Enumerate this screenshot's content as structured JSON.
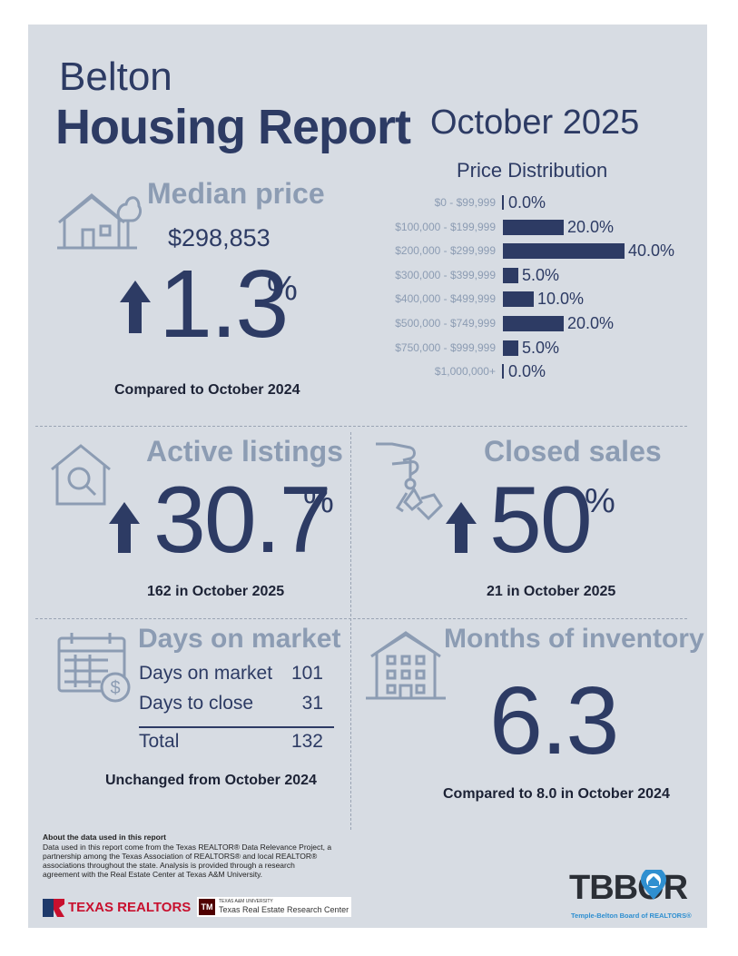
{
  "header": {
    "city": "Belton",
    "title": "Housing Report",
    "period": "October 2025"
  },
  "median_price": {
    "title": "Median price",
    "price": "$298,853",
    "change": "1.3",
    "unit": "%",
    "direction": "up",
    "comparison": "Compared to October 2024",
    "icon": "house-tree-icon"
  },
  "price_distribution": {
    "title": "Price Distribution",
    "rows": [
      {
        "range": "$0 - $99,999",
        "label": "0.0%",
        "value": 0.0
      },
      {
        "range": "$100,000 - $199,999",
        "label": "20.0%",
        "value": 20.0
      },
      {
        "range": "$200,000 - $299,999",
        "label": "40.0%",
        "value": 40.0
      },
      {
        "range": "$300,000 - $399,999",
        "label": "5.0%",
        "value": 5.0
      },
      {
        "range": "$400,000 - $499,999",
        "label": "10.0%",
        "value": 10.0
      },
      {
        "range": "$500,000 - $749,999",
        "label": "20.0%",
        "value": 20.0
      },
      {
        "range": "$750,000 - $999,999",
        "label": "5.0%",
        "value": 5.0
      },
      {
        "range": "$1,000,000+",
        "label": "0.0%",
        "value": 0.0
      }
    ]
  },
  "chart_data": {
    "type": "bar",
    "orientation": "horizontal",
    "title": "Price Distribution",
    "categories": [
      "$0 - $99,999",
      "$100,000 - $199,999",
      "$200,000 - $299,999",
      "$300,000 - $399,999",
      "$400,000 - $499,999",
      "$500,000 - $749,999",
      "$750,000 - $999,999",
      "$1,000,000+"
    ],
    "values": [
      0.0,
      20.0,
      40.0,
      5.0,
      10.0,
      20.0,
      5.0,
      0.0
    ],
    "unit": "%",
    "xlim": [
      0,
      40
    ]
  },
  "active_listings": {
    "title": "Active listings",
    "change": "30.7",
    "unit": "%",
    "direction": "up",
    "detail": "162 in October 2025"
  },
  "closed_sales": {
    "title": "Closed sales",
    "change": "50",
    "unit": "%",
    "direction": "up",
    "detail": "21 in October 2025"
  },
  "days_on_market": {
    "title": "Days on market",
    "rows": [
      {
        "label": "Days on market",
        "value": "101"
      },
      {
        "label": "Days to close",
        "value": "31"
      }
    ],
    "total_label": "Total",
    "total_value": "132",
    "comparison": "Unchanged from October 2024"
  },
  "months_inventory": {
    "title": "Months of inventory",
    "value": "6.3",
    "comparison": "Compared to 8.0 in October 2024"
  },
  "footer": {
    "about_title": "About the data used in this report",
    "about_text": "Data used in this report come from the Texas REALTOR® Data Relevance Project, a partnership among the Texas Association of REALTORS® and local REALTOR® associations throughout the state. Analysis is provided through a research agreement with the Real Estate Center at Texas A&M University.",
    "texas_realtors": "TEXAS REALTORS",
    "tamu_small": "TEXAS A&M UNIVERSITY",
    "tamu_center": "Texas Real Estate Research Center",
    "tbbor_logo": "TBBOR",
    "tbbor_name": "Temple-Belton Board of REALTORS®"
  },
  "colors": {
    "navy": "#2d3b64",
    "steel": "#8c9cb3",
    "panel": "#d7dce3",
    "tbbor_blue": "#2f8fd0"
  }
}
